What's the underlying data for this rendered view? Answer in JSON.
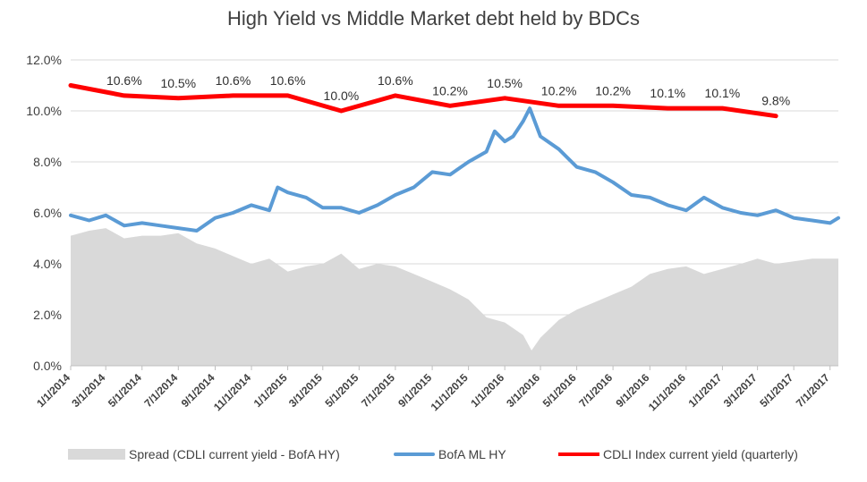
{
  "chart_data": {
    "type": "line",
    "title": "High Yield  vs  Middle Market debt held by BDCs",
    "xlabel": "",
    "ylabel": "",
    "ylim": [
      0,
      12
    ],
    "y_ticks": [
      "0.0%",
      "2.0%",
      "4.0%",
      "6.0%",
      "8.0%",
      "10.0%",
      "12.0%"
    ],
    "x_range": [
      "2014-01-01",
      "2017-07-15"
    ],
    "x_ticks": [
      "1/1/2014",
      "3/1/2014",
      "5/1/2014",
      "7/1/2014",
      "9/1/2014",
      "11/1/2014",
      "1/1/2015",
      "3/1/2015",
      "5/1/2015",
      "7/1/2015",
      "9/1/2015",
      "11/1/2015",
      "1/1/2016",
      "3/1/2016",
      "5/1/2016",
      "7/1/2016",
      "9/1/2016",
      "11/1/2016",
      "1/1/2017",
      "3/1/2017",
      "5/1/2017",
      "7/1/2017"
    ],
    "grid": "horizontal",
    "legend": "bottom",
    "series": [
      {
        "name": "Spread (CDLI current yield - BofA HY)",
        "kind": "area",
        "color": "#d9d9d9",
        "x": [
          "2014-01-01",
          "2014-02-01",
          "2014-03-01",
          "2014-04-01",
          "2014-05-01",
          "2014-06-01",
          "2014-07-01",
          "2014-08-01",
          "2014-09-01",
          "2014-10-01",
          "2014-11-01",
          "2014-12-01",
          "2015-01-01",
          "2015-02-01",
          "2015-03-01",
          "2015-04-01",
          "2015-05-01",
          "2015-06-01",
          "2015-07-01",
          "2015-08-01",
          "2015-09-01",
          "2015-10-01",
          "2015-11-01",
          "2015-12-01",
          "2016-01-01",
          "2016-02-01",
          "2016-02-15",
          "2016-03-01",
          "2016-04-01",
          "2016-05-01",
          "2016-06-01",
          "2016-07-01",
          "2016-08-01",
          "2016-09-01",
          "2016-10-01",
          "2016-11-01",
          "2016-12-01",
          "2017-01-01",
          "2017-02-01",
          "2017-03-01",
          "2017-04-01",
          "2017-05-01",
          "2017-06-01",
          "2017-07-01",
          "2017-07-15"
        ],
        "values": [
          5.1,
          5.3,
          5.4,
          5.0,
          5.1,
          5.1,
          5.2,
          4.8,
          4.6,
          4.3,
          4.0,
          4.2,
          3.7,
          3.9,
          4.0,
          4.4,
          3.8,
          4.0,
          3.9,
          3.6,
          3.3,
          3.0,
          2.6,
          1.9,
          1.7,
          1.2,
          0.6,
          1.1,
          1.8,
          2.2,
          2.5,
          2.8,
          3.1,
          3.6,
          3.8,
          3.9,
          3.6,
          3.8,
          4.0,
          4.2,
          4.0,
          4.1,
          4.2,
          4.2,
          4.2
        ]
      },
      {
        "name": "BofA ML HY",
        "kind": "line",
        "color": "#5b9bd5",
        "x": [
          "2014-01-01",
          "2014-02-01",
          "2014-03-01",
          "2014-04-01",
          "2014-05-01",
          "2014-06-01",
          "2014-07-01",
          "2014-08-01",
          "2014-09-01",
          "2014-10-01",
          "2014-11-01",
          "2014-12-01",
          "2014-12-15",
          "2015-01-01",
          "2015-02-01",
          "2015-03-01",
          "2015-04-01",
          "2015-05-01",
          "2015-06-01",
          "2015-07-01",
          "2015-08-01",
          "2015-09-01",
          "2015-10-01",
          "2015-11-01",
          "2015-12-01",
          "2015-12-15",
          "2016-01-01",
          "2016-01-15",
          "2016-02-01",
          "2016-02-12",
          "2016-03-01",
          "2016-04-01",
          "2016-05-01",
          "2016-06-01",
          "2016-07-01",
          "2016-08-01",
          "2016-09-01",
          "2016-10-01",
          "2016-11-01",
          "2016-12-01",
          "2017-01-01",
          "2017-02-01",
          "2017-03-01",
          "2017-04-01",
          "2017-05-01",
          "2017-06-01",
          "2017-07-01",
          "2017-07-15"
        ],
        "values": [
          5.9,
          5.7,
          5.9,
          5.5,
          5.6,
          5.5,
          5.4,
          5.3,
          5.8,
          6.0,
          6.3,
          6.1,
          7.0,
          6.8,
          6.6,
          6.2,
          6.2,
          6.0,
          6.3,
          6.7,
          7.0,
          7.6,
          7.5,
          8.0,
          8.4,
          9.2,
          8.8,
          9.0,
          9.6,
          10.1,
          9.0,
          8.5,
          7.8,
          7.6,
          7.2,
          6.7,
          6.6,
          6.3,
          6.1,
          6.6,
          6.2,
          6.0,
          5.9,
          6.1,
          5.8,
          5.7,
          5.6,
          5.8
        ]
      },
      {
        "name": "CDLI Index current yield (quarterly)",
        "kind": "line",
        "color": "#ff0000",
        "x": [
          "2014-01-01",
          "2014-04-01",
          "2014-07-01",
          "2014-10-01",
          "2015-01-01",
          "2015-04-01",
          "2015-07-01",
          "2015-10-01",
          "2016-01-01",
          "2016-04-01",
          "2016-07-01",
          "2016-10-01",
          "2017-01-01",
          "2017-04-01"
        ],
        "values": [
          11.0,
          10.6,
          10.5,
          10.6,
          10.6,
          10.0,
          10.6,
          10.2,
          10.5,
          10.2,
          10.2,
          10.1,
          10.1,
          9.8
        ],
        "data_labels": [
          "",
          "10.6%",
          "10.5%",
          "10.6%",
          "10.6%",
          "10.0%",
          "10.6%",
          "10.2%",
          "10.5%",
          "10.2%",
          "10.2%",
          "10.1%",
          "10.1%",
          "9.8%"
        ]
      }
    ]
  }
}
